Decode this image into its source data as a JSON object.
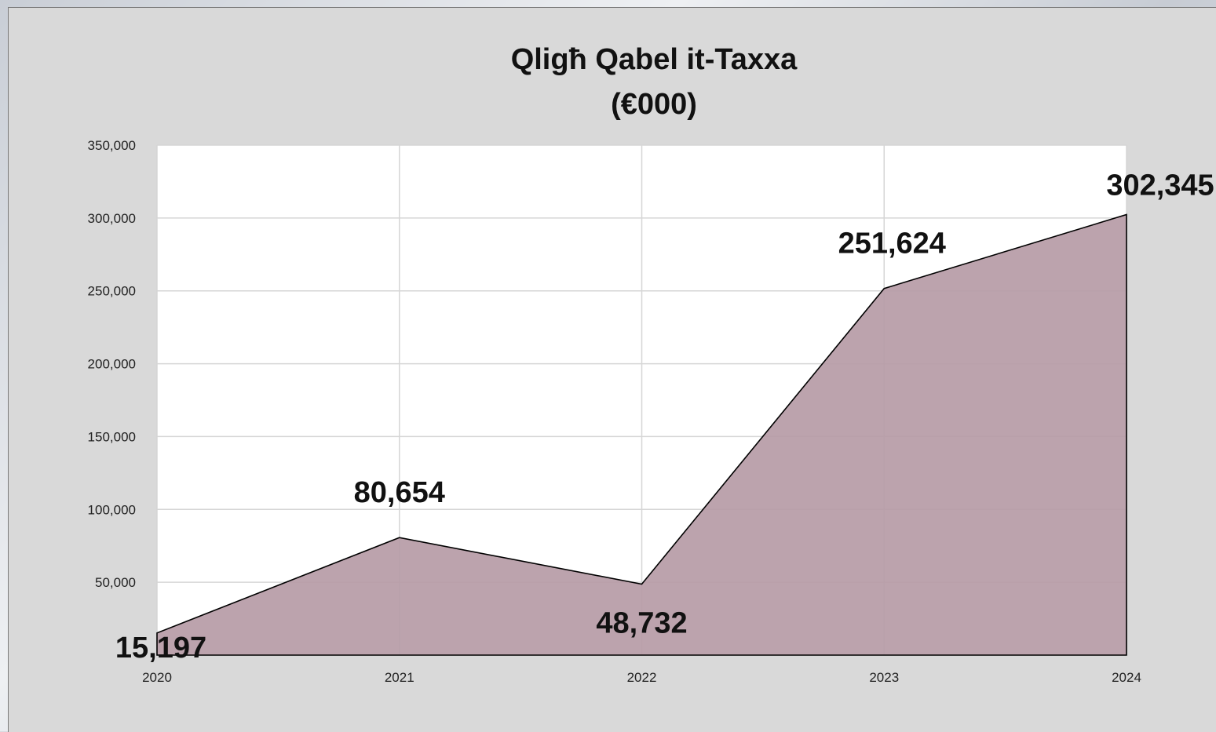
{
  "chart_data": {
    "type": "area",
    "title_lines": [
      "Qligħ Qabel it-Taxxa",
      "(€000)"
    ],
    "categories": [
      "2020",
      "2021",
      "2022",
      "2023",
      "2024"
    ],
    "values": [
      15197,
      80654,
      48732,
      251624,
      302345
    ],
    "data_labels": [
      "15,197",
      "80,654",
      "48,732",
      "251,624",
      "302,345"
    ],
    "y_ticks": [
      {
        "value": 50000,
        "label": "50,000"
      },
      {
        "value": 100000,
        "label": "100,000"
      },
      {
        "value": 150000,
        "label": "150,000"
      },
      {
        "value": 200000,
        "label": "200,000"
      },
      {
        "value": 250000,
        "label": "250,000"
      },
      {
        "value": 300000,
        "label": "300,000"
      },
      {
        "value": 350000,
        "label": "350,000"
      }
    ],
    "ylim": [
      0,
      350000
    ],
    "grid": true,
    "legend": "none",
    "colors": {
      "fill": "#b79ca7",
      "line": "#000000",
      "plot_bg": "#ffffff",
      "chart_bg": "#d9d9d9",
      "grid": "#d6d6d6"
    }
  }
}
